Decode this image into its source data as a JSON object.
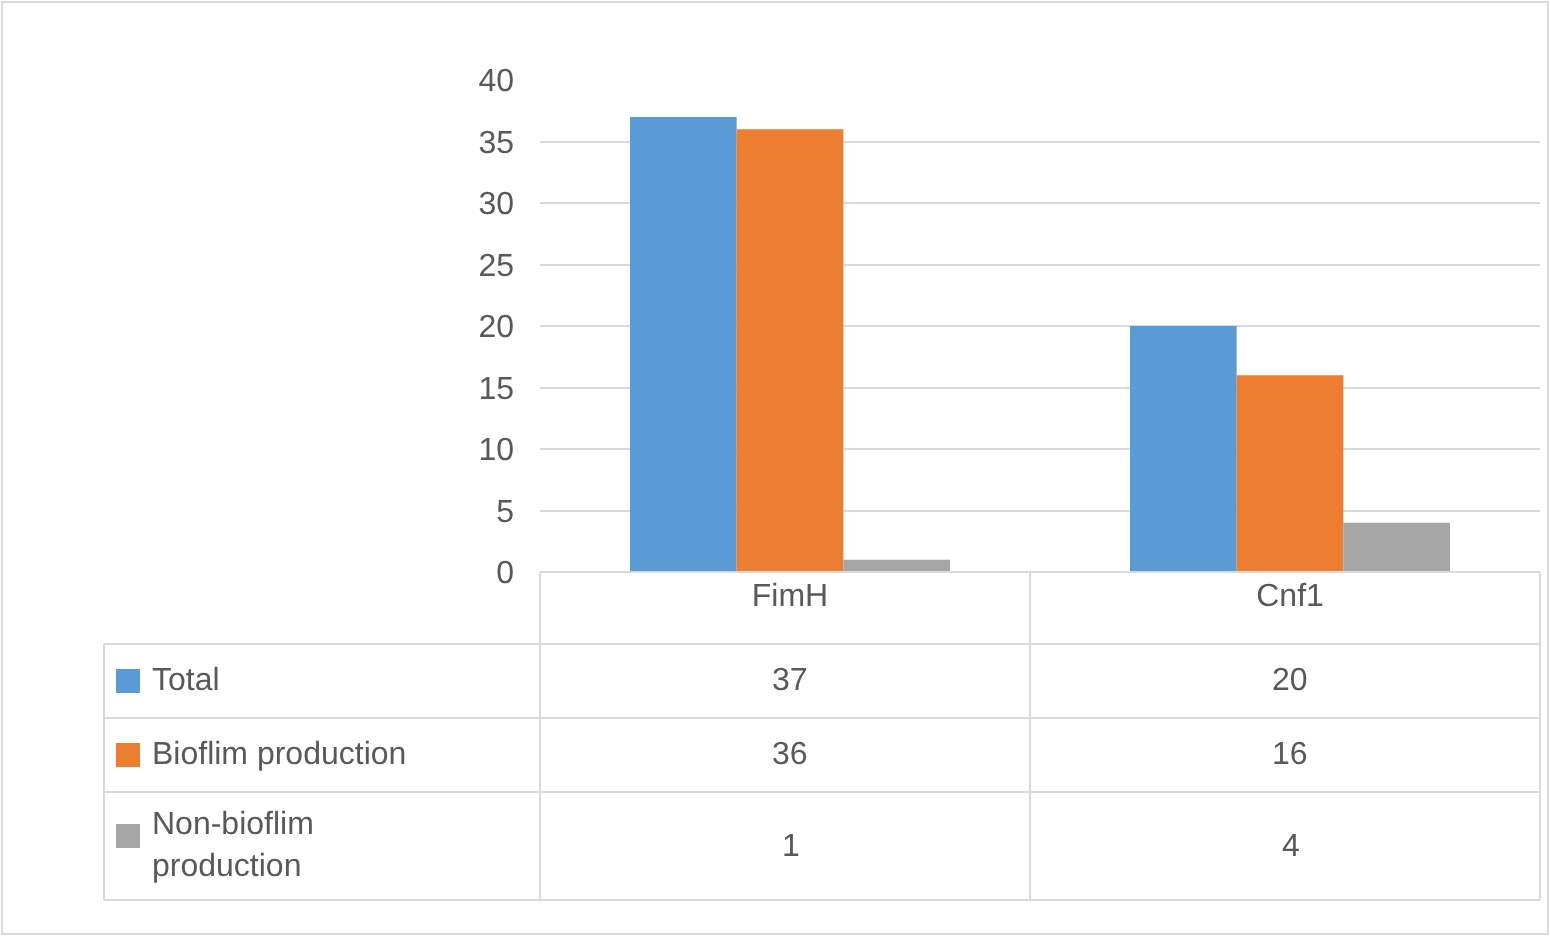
{
  "chart_data": {
    "type": "bar",
    "categories": [
      "FimH",
      "Cnf1"
    ],
    "series": [
      {
        "name": "Total",
        "color": "#5b9bd5",
        "values": [
          37,
          20
        ]
      },
      {
        "name": "Bioflim production",
        "color": "#ed7d31",
        "values": [
          36,
          16
        ]
      },
      {
        "name": "Non-bioflim production",
        "color": "#a5a5a5",
        "values": [
          1,
          4
        ]
      }
    ],
    "ylim": [
      0,
      40
    ],
    "yticks": [
      0,
      5,
      10,
      15,
      20,
      25,
      30,
      35,
      40
    ],
    "grid": "y",
    "data_labels": true,
    "legend": "bottom"
  }
}
